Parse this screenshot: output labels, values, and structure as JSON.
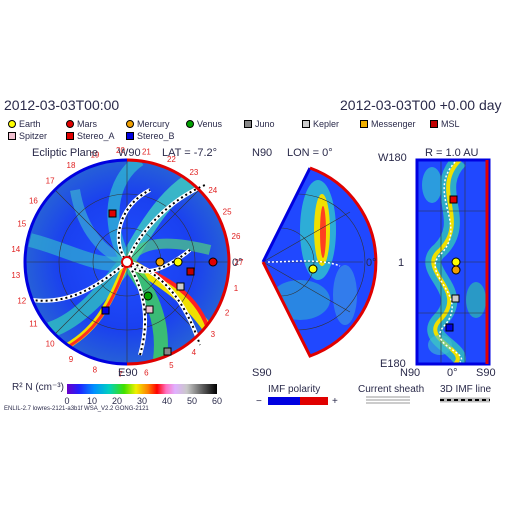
{
  "header": {
    "date_left": "2012-03-03T00:00",
    "date_right": "2012-03-03T00 +0.00 day"
  },
  "legend": {
    "items": [
      {
        "label": "Earth",
        "color": "#ffff00",
        "shape": "circle"
      },
      {
        "label": "Mars",
        "color": "#e00000",
        "shape": "circle"
      },
      {
        "label": "Mercury",
        "color": "#f0a000",
        "shape": "circle"
      },
      {
        "label": "Venus",
        "color": "#00a000",
        "shape": "circle"
      },
      {
        "label": "Juno",
        "color": "#888888",
        "shape": "square"
      },
      {
        "label": "Kepler",
        "color": "#cccccc",
        "shape": "square"
      },
      {
        "label": "Messenger",
        "color": "#f0b000",
        "shape": "square"
      },
      {
        "label": "MSL",
        "color": "#c00000",
        "shape": "square"
      },
      {
        "label": "Spitzer",
        "color": "#f0c0d0",
        "shape": "square"
      },
      {
        "label": "Stereo_A",
        "color": "#e00000",
        "shape": "square"
      },
      {
        "label": "Stereo_B",
        "color": "#0000e0",
        "shape": "square"
      }
    ]
  },
  "panel_left": {
    "title": "Ecliptic Plane",
    "lat_label": "LAT = -7.2°",
    "top_label": "W90",
    "bottom_label": "E90",
    "right_label": "0°",
    "clock_numbers": [
      "19",
      "20",
      "21",
      "22",
      "23",
      "24",
      "25",
      "26",
      "27",
      "1",
      "2",
      "3",
      "4",
      "5",
      "6",
      "7",
      "8",
      "9",
      "10",
      "11",
      "12",
      "13",
      "14",
      "15",
      "16",
      "17",
      "18"
    ]
  },
  "panel_mid": {
    "top_label": "N90",
    "lon_label": "LON = 0°",
    "bottom_label": "S90",
    "right_label": "0°"
  },
  "panel_right": {
    "r_label": "R = 1.0 AU",
    "top_label": "W180",
    "bottom_label": "E180",
    "left_label": "1",
    "x_labels": [
      "N90",
      "0°",
      "S90"
    ]
  },
  "colorbar": {
    "label": "R² N (cm⁻³)",
    "ticks": [
      "0",
      "10",
      "20",
      "30",
      "40",
      "50",
      "60"
    ]
  },
  "imf_polarity": {
    "label": "IMF polarity",
    "minus": "−",
    "plus": "+"
  },
  "current_sheath": {
    "label": "Current sheath"
  },
  "imf_line": {
    "label": "3D IMF line"
  },
  "footer": {
    "model": "ENLIL-2.7 lowres-2121-a3b1f WSA_V2.2 GONG-2121"
  },
  "colors": {
    "text": "#2a2a4a",
    "red": "#e00000",
    "blue": "#0000e0"
  }
}
